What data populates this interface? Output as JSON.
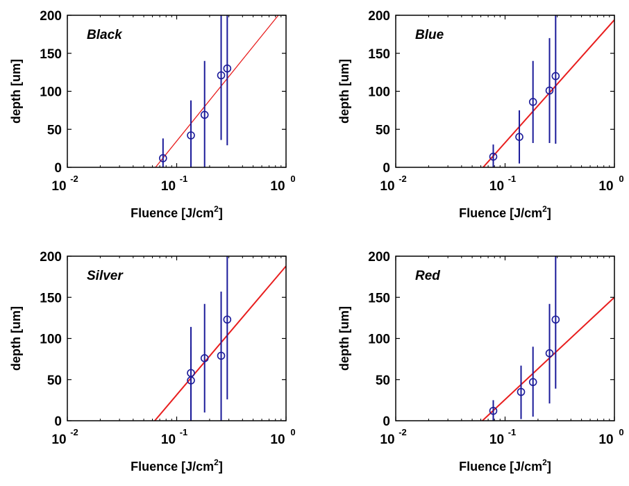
{
  "colors": {
    "marker": "#1a1a99",
    "fit_line": "#e81e1e",
    "axes": "#000000"
  },
  "chart_data": [
    {
      "type": "scatter",
      "title": "Black",
      "xlabel": "Fluence [J/cm2]",
      "xlabel_main": "Fluence [J/cm",
      "xlabel_sup": "2",
      "xlabel_end": "]",
      "ylabel": "depth [um]",
      "xscale": "log",
      "xlim": [
        0.01,
        1
      ],
      "ylim": [
        0,
        200
      ],
      "yticks": [
        0,
        50,
        100,
        150,
        200
      ],
      "xticks": [
        {
          "base": "10",
          "exp": "-2"
        },
        {
          "base": "10",
          "exp": "-1"
        },
        {
          "base": "10",
          "exp": "0"
        }
      ],
      "series": [
        {
          "x": [
            0.075,
            0.135,
            0.18,
            0.255,
            0.29
          ],
          "y": [
            12,
            42,
            69,
            121,
            130
          ],
          "err_low": [
            0,
            0,
            0,
            36,
            29
          ],
          "err_high": [
            38,
            88,
            140,
            200,
            200
          ]
        }
      ],
      "fit": {
        "x": [
          0.064,
          0.85
        ],
        "y": [
          0,
          200
        ]
      }
    },
    {
      "type": "scatter",
      "title": "Blue",
      "xlabel": "Fluence [J/cm2]",
      "xlabel_main": "Fluence [J/cm",
      "xlabel_sup": "2",
      "xlabel_end": "]",
      "ylabel": "depth [um]",
      "xscale": "log",
      "xlim": [
        0.01,
        1
      ],
      "ylim": [
        0,
        200
      ],
      "yticks": [
        0,
        50,
        100,
        150,
        200
      ],
      "xticks": [
        {
          "base": "10",
          "exp": "-2"
        },
        {
          "base": "10",
          "exp": "-1"
        },
        {
          "base": "10",
          "exp": "0"
        }
      ],
      "series": [
        {
          "x": [
            0.078,
            0.135,
            0.18,
            0.255,
            0.29
          ],
          "y": [
            14,
            40,
            86,
            101,
            120
          ],
          "err_low": [
            0,
            5,
            32,
            32,
            31
          ],
          "err_high": [
            30,
            75,
            140,
            170,
            200
          ]
        }
      ],
      "fit": {
        "x": [
          0.063,
          1.0
        ],
        "y": [
          0,
          194
        ]
      }
    },
    {
      "type": "scatter",
      "title": "Silver",
      "xlabel": "Fluence [J/cm2]",
      "xlabel_main": "Fluence [J/cm",
      "xlabel_sup": "2",
      "xlabel_end": "]",
      "ylabel": "depth [um]",
      "xscale": "log",
      "xlim": [
        0.01,
        1
      ],
      "ylim": [
        0,
        200
      ],
      "yticks": [
        0,
        50,
        100,
        150,
        200
      ],
      "xticks": [
        {
          "base": "10",
          "exp": "-2"
        },
        {
          "base": "10",
          "exp": "-1"
        },
        {
          "base": "10",
          "exp": "0"
        }
      ],
      "series": [
        {
          "x": [
            0.135,
            0.135,
            0.18,
            0.255,
            0.29
          ],
          "y": [
            58,
            49,
            76,
            79,
            123
          ],
          "err_low": [
            0,
            0,
            10,
            0,
            26
          ],
          "err_high": [
            114,
            90,
            142,
            157,
            200
          ]
        }
      ],
      "fit": {
        "x": [
          0.063,
          1.0
        ],
        "y": [
          0,
          188
        ]
      }
    },
    {
      "type": "scatter",
      "title": "Red",
      "xlabel": "Fluence [J/cm2]",
      "xlabel_main": "Fluence [J/cm",
      "xlabel_sup": "2",
      "xlabel_end": "]",
      "ylabel": "depth [um]",
      "xscale": "log",
      "xlim": [
        0.01,
        1
      ],
      "ylim": [
        0,
        200
      ],
      "yticks": [
        0,
        50,
        100,
        150,
        200
      ],
      "xticks": [
        {
          "base": "10",
          "exp": "-2"
        },
        {
          "base": "10",
          "exp": "-1"
        },
        {
          "base": "10",
          "exp": "0"
        }
      ],
      "series": [
        {
          "x": [
            0.078,
            0.14,
            0.18,
            0.255,
            0.29
          ],
          "y": [
            12,
            35,
            47,
            82,
            123
          ],
          "err_low": [
            0,
            2,
            5,
            21,
            39
          ],
          "err_high": [
            25,
            67,
            90,
            142,
            200
          ]
        }
      ],
      "fit": {
        "x": [
          0.062,
          1.0
        ],
        "y": [
          0,
          150
        ]
      }
    }
  ]
}
